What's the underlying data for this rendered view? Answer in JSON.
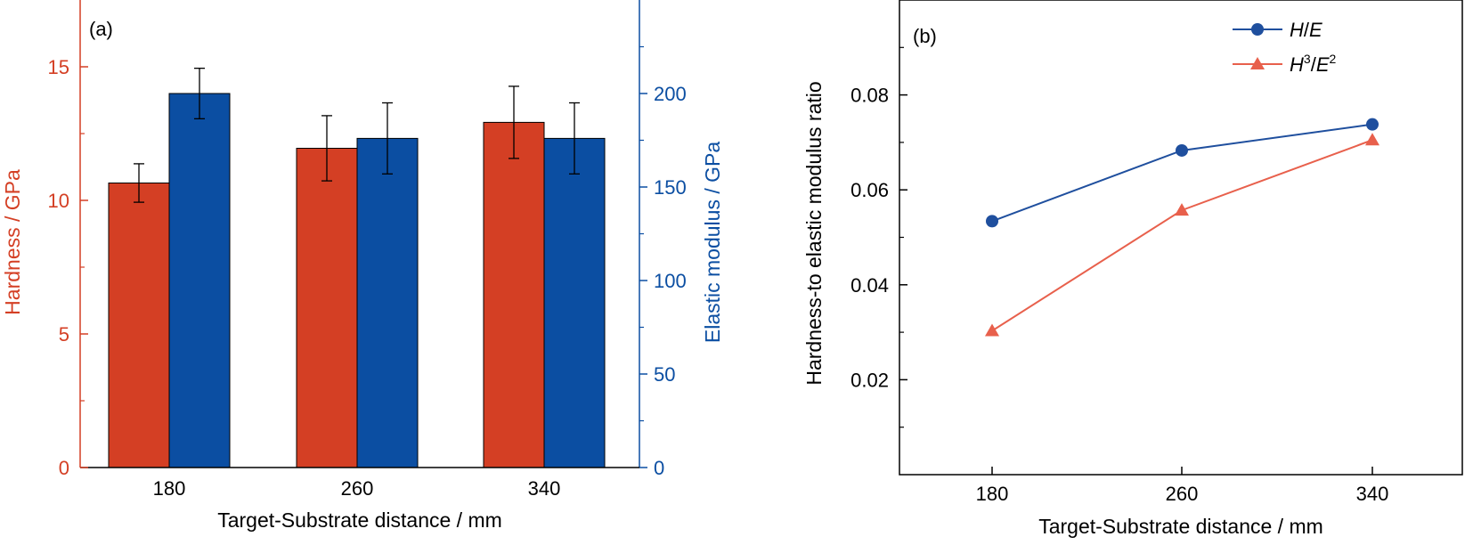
{
  "colors": {
    "hardness": "#d43f24",
    "modulus": "#0b4ea2",
    "he_line": "#1f4f9e",
    "h3e2_line": "#e8604c",
    "axis": "#000000"
  },
  "chart_data": [
    {
      "type": "bar",
      "panel_label": "(a)",
      "categories": [
        "180",
        "260",
        "340"
      ],
      "xlabel": "Target-Substrate distance / mm",
      "ylabel_left": "Hardness / GPa",
      "ylabel_right": "Elastic modulus / GPa",
      "ylim_left": [
        0,
        17.5
      ],
      "ylim_right": [
        0,
        250
      ],
      "yticks_left": [
        "0",
        "5",
        "10",
        "15"
      ],
      "yticks_right": [
        "0",
        "50",
        "100",
        "150",
        "200"
      ],
      "series": [
        {
          "name": "Hardness",
          "axis": "left",
          "values": [
            10.65,
            11.95,
            12.92
          ],
          "errors": [
            0.72,
            1.22,
            1.35
          ],
          "color": "#d43f24"
        },
        {
          "name": "Elastic modulus",
          "axis": "right",
          "values": [
            200,
            176,
            176
          ],
          "errors": [
            13.5,
            19,
            19
          ],
          "color": "#0b4ea2"
        }
      ],
      "legend": "none"
    },
    {
      "type": "line",
      "panel_label": "(b)",
      "x": [
        "180",
        "260",
        "340"
      ],
      "xlabel": "Target-Substrate distance / mm",
      "ylabel": "Hardness-to elastic modulus ratio",
      "ylim": [
        0,
        0.1
      ],
      "yticks": [
        "0.02",
        "0.04",
        "0.06",
        "0.08"
      ],
      "series": [
        {
          "legend": {
            "H": "H",
            "sep": "/",
            "E": "E",
            "sup_h": "",
            "sup_e": ""
          },
          "marker": "circle",
          "values": [
            0.0534,
            0.0683,
            0.0738
          ],
          "color": "#1f4f9e"
        },
        {
          "legend": {
            "H": "H",
            "sep": "/",
            "E": "E",
            "sup_h": "3",
            "sup_e": "2"
          },
          "marker": "triangle",
          "values": [
            0.0303,
            0.0557,
            0.0705
          ],
          "color": "#e8604c"
        }
      ],
      "legend_position": "top-right"
    }
  ]
}
